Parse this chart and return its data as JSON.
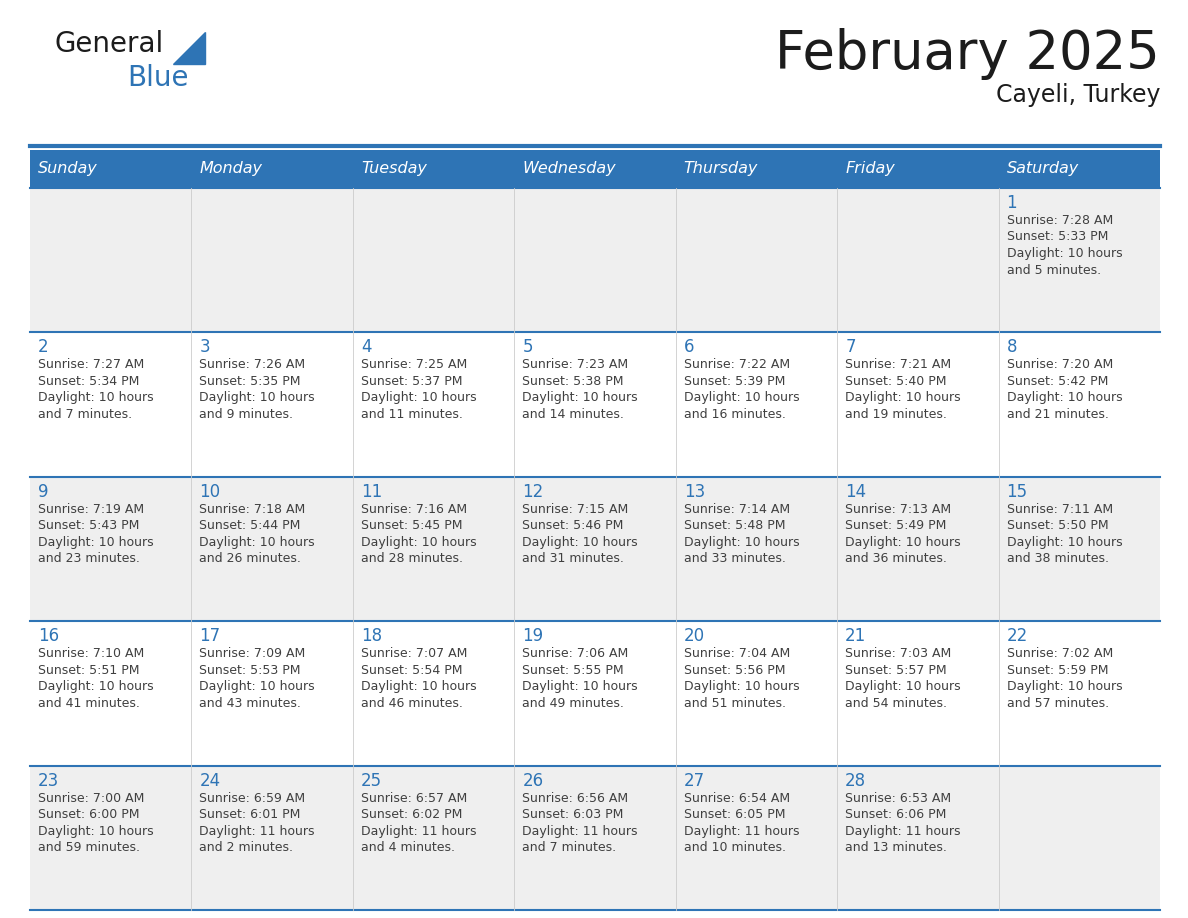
{
  "title": "February 2025",
  "subtitle": "Cayeli, Turkey",
  "days_of_week": [
    "Sunday",
    "Monday",
    "Tuesday",
    "Wednesday",
    "Thursday",
    "Friday",
    "Saturday"
  ],
  "header_bg": "#2E74B5",
  "header_text": "#FFFFFF",
  "row_bg_odd": "#EFEFEF",
  "row_bg_even": "#FFFFFF",
  "day_number_color": "#2E74B5",
  "info_text_color": "#404040",
  "border_color": "#2E74B5",
  "calendar_data": [
    [
      {
        "day": null,
        "sunrise": null,
        "sunset": null,
        "daylight": null
      },
      {
        "day": null,
        "sunrise": null,
        "sunset": null,
        "daylight": null
      },
      {
        "day": null,
        "sunrise": null,
        "sunset": null,
        "daylight": null
      },
      {
        "day": null,
        "sunrise": null,
        "sunset": null,
        "daylight": null
      },
      {
        "day": null,
        "sunrise": null,
        "sunset": null,
        "daylight": null
      },
      {
        "day": null,
        "sunrise": null,
        "sunset": null,
        "daylight": null
      },
      {
        "day": 1,
        "sunrise": "7:28 AM",
        "sunset": "5:33 PM",
        "daylight": "10 hours\nand 5 minutes."
      }
    ],
    [
      {
        "day": 2,
        "sunrise": "7:27 AM",
        "sunset": "5:34 PM",
        "daylight": "10 hours\nand 7 minutes."
      },
      {
        "day": 3,
        "sunrise": "7:26 AM",
        "sunset": "5:35 PM",
        "daylight": "10 hours\nand 9 minutes."
      },
      {
        "day": 4,
        "sunrise": "7:25 AM",
        "sunset": "5:37 PM",
        "daylight": "10 hours\nand 11 minutes."
      },
      {
        "day": 5,
        "sunrise": "7:23 AM",
        "sunset": "5:38 PM",
        "daylight": "10 hours\nand 14 minutes."
      },
      {
        "day": 6,
        "sunrise": "7:22 AM",
        "sunset": "5:39 PM",
        "daylight": "10 hours\nand 16 minutes."
      },
      {
        "day": 7,
        "sunrise": "7:21 AM",
        "sunset": "5:40 PM",
        "daylight": "10 hours\nand 19 minutes."
      },
      {
        "day": 8,
        "sunrise": "7:20 AM",
        "sunset": "5:42 PM",
        "daylight": "10 hours\nand 21 minutes."
      }
    ],
    [
      {
        "day": 9,
        "sunrise": "7:19 AM",
        "sunset": "5:43 PM",
        "daylight": "10 hours\nand 23 minutes."
      },
      {
        "day": 10,
        "sunrise": "7:18 AM",
        "sunset": "5:44 PM",
        "daylight": "10 hours\nand 26 minutes."
      },
      {
        "day": 11,
        "sunrise": "7:16 AM",
        "sunset": "5:45 PM",
        "daylight": "10 hours\nand 28 minutes."
      },
      {
        "day": 12,
        "sunrise": "7:15 AM",
        "sunset": "5:46 PM",
        "daylight": "10 hours\nand 31 minutes."
      },
      {
        "day": 13,
        "sunrise": "7:14 AM",
        "sunset": "5:48 PM",
        "daylight": "10 hours\nand 33 minutes."
      },
      {
        "day": 14,
        "sunrise": "7:13 AM",
        "sunset": "5:49 PM",
        "daylight": "10 hours\nand 36 minutes."
      },
      {
        "day": 15,
        "sunrise": "7:11 AM",
        "sunset": "5:50 PM",
        "daylight": "10 hours\nand 38 minutes."
      }
    ],
    [
      {
        "day": 16,
        "sunrise": "7:10 AM",
        "sunset": "5:51 PM",
        "daylight": "10 hours\nand 41 minutes."
      },
      {
        "day": 17,
        "sunrise": "7:09 AM",
        "sunset": "5:53 PM",
        "daylight": "10 hours\nand 43 minutes."
      },
      {
        "day": 18,
        "sunrise": "7:07 AM",
        "sunset": "5:54 PM",
        "daylight": "10 hours\nand 46 minutes."
      },
      {
        "day": 19,
        "sunrise": "7:06 AM",
        "sunset": "5:55 PM",
        "daylight": "10 hours\nand 49 minutes."
      },
      {
        "day": 20,
        "sunrise": "7:04 AM",
        "sunset": "5:56 PM",
        "daylight": "10 hours\nand 51 minutes."
      },
      {
        "day": 21,
        "sunrise": "7:03 AM",
        "sunset": "5:57 PM",
        "daylight": "10 hours\nand 54 minutes."
      },
      {
        "day": 22,
        "sunrise": "7:02 AM",
        "sunset": "5:59 PM",
        "daylight": "10 hours\nand 57 minutes."
      }
    ],
    [
      {
        "day": 23,
        "sunrise": "7:00 AM",
        "sunset": "6:00 PM",
        "daylight": "10 hours\nand 59 minutes."
      },
      {
        "day": 24,
        "sunrise": "6:59 AM",
        "sunset": "6:01 PM",
        "daylight": "11 hours\nand 2 minutes."
      },
      {
        "day": 25,
        "sunrise": "6:57 AM",
        "sunset": "6:02 PM",
        "daylight": "11 hours\nand 4 minutes."
      },
      {
        "day": 26,
        "sunrise": "6:56 AM",
        "sunset": "6:03 PM",
        "daylight": "11 hours\nand 7 minutes."
      },
      {
        "day": 27,
        "sunrise": "6:54 AM",
        "sunset": "6:05 PM",
        "daylight": "11 hours\nand 10 minutes."
      },
      {
        "day": 28,
        "sunrise": "6:53 AM",
        "sunset": "6:06 PM",
        "daylight": "11 hours\nand 13 minutes."
      },
      {
        "day": null,
        "sunrise": null,
        "sunset": null,
        "daylight": null
      }
    ]
  ],
  "fig_width": 11.88,
  "fig_height": 9.18
}
